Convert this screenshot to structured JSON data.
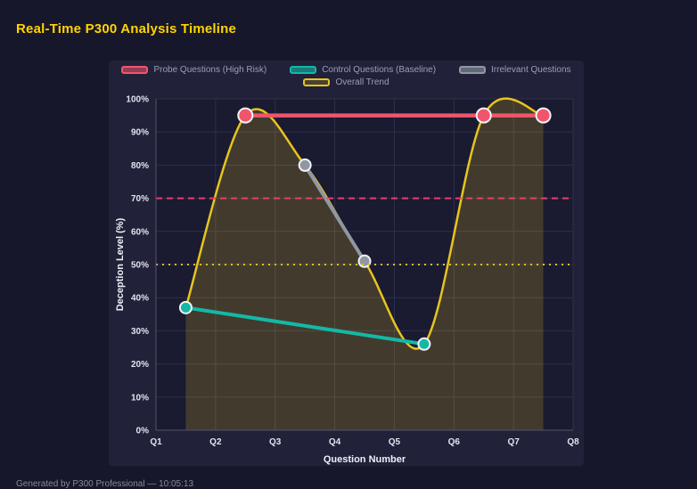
{
  "page": {
    "title": "Real-Time P300 Analysis Timeline",
    "footer": "Generated by P300 Professional — 10:05:13"
  },
  "chart_data": {
    "type": "line",
    "title": "Real-Time P300 Analysis Timeline",
    "xlabel": "Question Number",
    "ylabel": "Deception Level (%)",
    "x_tick_labels": [
      "Q1",
      "Q2",
      "Q3",
      "Q4",
      "Q5",
      "Q6",
      "Q7",
      "Q8"
    ],
    "x_tick_values": [
      1,
      2,
      3,
      4,
      5,
      6,
      7,
      8
    ],
    "xlim": [
      1,
      8
    ],
    "y_tick_labels": [
      "0%",
      "10%",
      "20%",
      "30%",
      "40%",
      "50%",
      "60%",
      "70%",
      "80%",
      "90%",
      "100%"
    ],
    "y_tick_values": [
      0,
      10,
      20,
      30,
      40,
      50,
      60,
      70,
      80,
      90,
      100
    ],
    "ylim": [
      0,
      100
    ],
    "grid": true,
    "legend_position": "top",
    "series": [
      {
        "name": "Probe Questions (High Risk)",
        "color": "#f1556b",
        "legend_bg": "rgba(241,85,107,0.55)",
        "line_width": 4.5,
        "marker_radius": 8,
        "smooth": false,
        "points": [
          [
            2.5,
            95
          ],
          [
            6.5,
            95
          ],
          [
            7.5,
            95
          ]
        ]
      },
      {
        "name": "Control Questions (Baseline)",
        "color": "#14b8a6",
        "legend_bg": "rgba(20,184,166,0.6)",
        "line_width": 4,
        "marker_radius": 6.5,
        "smooth": false,
        "points": [
          [
            1.5,
            37
          ],
          [
            5.5,
            26
          ]
        ]
      },
      {
        "name": "Irrelevant Questions",
        "color": "#9097a3",
        "legend_bg": "rgba(144,151,163,0.6)",
        "line_width": 4,
        "marker_radius": 6.5,
        "smooth": false,
        "points": [
          [
            3.5,
            80
          ],
          [
            4.5,
            51
          ]
        ]
      },
      {
        "name": "Overall Trend",
        "color": "#e8c41c",
        "legend_bg": "rgba(232,196,28,0.2)",
        "area_fill": "rgba(232,196,28,0.2)",
        "line_width": 2.5,
        "marker_radius": 0,
        "smooth": true,
        "points": [
          [
            1.5,
            37
          ],
          [
            2.5,
            95
          ],
          [
            3.5,
            80
          ],
          [
            4.5,
            51
          ],
          [
            5.5,
            26
          ],
          [
            6.5,
            95
          ],
          [
            7.5,
            95
          ]
        ]
      }
    ],
    "thresholds": [
      {
        "label": "high-risk-threshold",
        "value": 70,
        "color": "#e83e68",
        "dash": "7 5"
      },
      {
        "label": "baseline-threshold",
        "value": 50,
        "color": "#e0c020",
        "dash": "2 5"
      }
    ]
  }
}
